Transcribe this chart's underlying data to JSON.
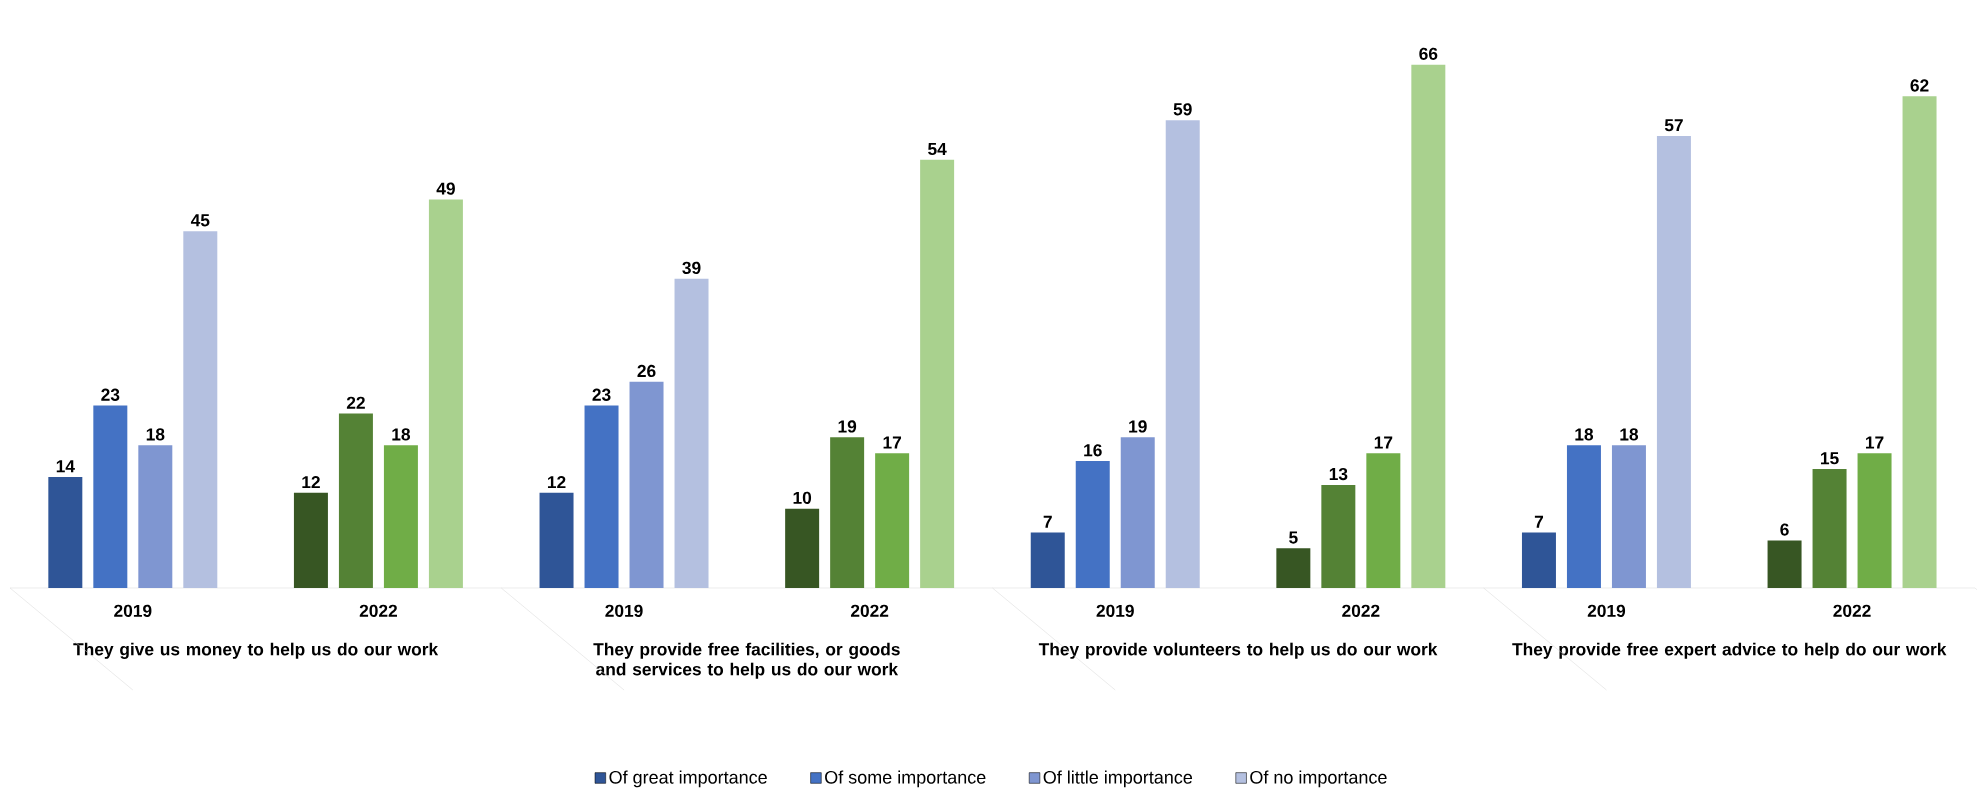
{
  "chart_data": {
    "type": "bar",
    "categories": [
      "2019",
      "2022",
      "2019",
      "2022",
      "2019",
      "2022",
      "2019",
      "2022"
    ],
    "series": [
      {
        "name": "Of great importance",
        "color": "#2f5597",
        "colors": [
          "#2f5597",
          "#375623",
          "#2f5597",
          "#375623",
          "#2f5597",
          "#375623",
          "#2f5597",
          "#375623"
        ],
        "values": [
          14,
          12,
          12,
          10,
          7,
          5,
          7,
          6
        ]
      },
      {
        "name": "Of some importance",
        "color": "#4472c4",
        "colors": [
          "#4472c4",
          "#548235",
          "#4472c4",
          "#548235",
          "#4472c4",
          "#548235",
          "#4472c4",
          "#548235"
        ],
        "values": [
          23,
          22,
          23,
          19,
          16,
          13,
          18,
          15
        ]
      },
      {
        "name": "Of little importance",
        "color": "#7f96d1",
        "colors": [
          "#7f96d1",
          "#70ad47",
          "#7f96d1",
          "#70ad47",
          "#7f96d1",
          "#70ad47",
          "#7f96d1",
          "#70ad47"
        ],
        "values": [
          18,
          18,
          26,
          17,
          19,
          17,
          18,
          17
        ]
      },
      {
        "name": "Of no importance",
        "color": "#b4c0e0",
        "colors": [
          "#b4c0e0",
          "#a9d18e",
          "#b4c0e0",
          "#a9d18e",
          "#b4c0e0",
          "#a9d18e",
          "#b4c0e0",
          "#a9d18e"
        ],
        "values": [
          45,
          49,
          39,
          54,
          59,
          66,
          57,
          62
        ]
      }
    ],
    "annotations": [
      "They give us money to help us do our work",
      "They provide free facilities, or goods and services to help us do our work",
      "They provide volunteers to help us do our work",
      "They provide free expert advice to help do our work"
    ],
    "data_labels": true,
    "legend": "bottom"
  }
}
